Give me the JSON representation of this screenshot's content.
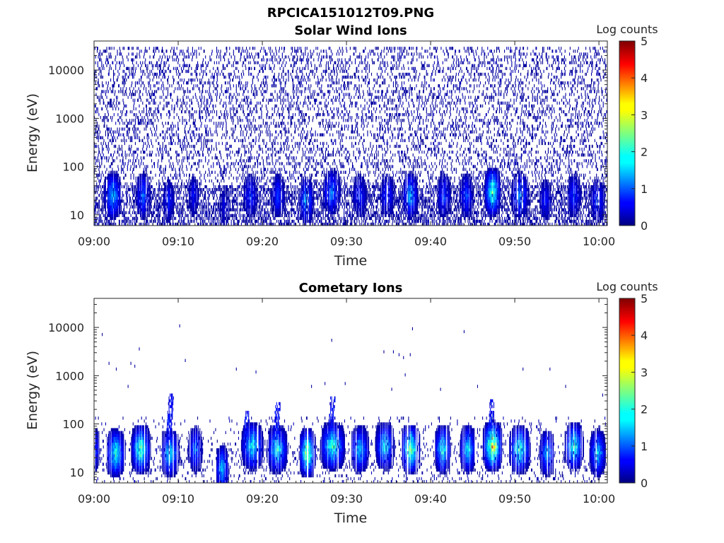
{
  "figure_title": "RPCICA151012T09.PNG",
  "chart_data": [
    {
      "type": "heatmap",
      "title": "Solar Wind Ions",
      "xlabel": "Time",
      "ylabel": "Energy (eV)",
      "x_range": [
        "09:00",
        "10:01"
      ],
      "x_ticks": [
        "09:00",
        "09:10",
        "09:20",
        "09:30",
        "09:40",
        "09:50",
        "10:00"
      ],
      "y_scale": "log",
      "y_range": [
        6,
        40000
      ],
      "y_ticks": [
        "10",
        "100",
        "1000",
        "10000"
      ],
      "colorbar": {
        "label": "Log counts",
        "range": [
          0,
          5
        ],
        "ticks": [
          "0",
          "1",
          "2",
          "3",
          "4",
          "5"
        ],
        "colormap": "jet"
      },
      "seed": 7,
      "background_density": 0.17,
      "background_max_energy": 30000,
      "bursts": [
        {
          "minute": 2.2,
          "peak_energy": 25,
          "peak_log": 1.9,
          "width": 1.2
        },
        {
          "minute": 5.8,
          "peak_energy": 25,
          "peak_log": 1.4,
          "width": 1.0
        },
        {
          "minute": 8.8,
          "peak_energy": 20,
          "peak_log": 1.0,
          "width": 0.8
        },
        {
          "minute": 11.8,
          "peak_energy": 25,
          "peak_log": 0.8,
          "width": 0.8
        },
        {
          "minute": 15.5,
          "peak_energy": 15,
          "peak_log": 0.7,
          "width": 0.8
        },
        {
          "minute": 18.5,
          "peak_energy": 25,
          "peak_log": 1.1,
          "width": 1.0
        },
        {
          "minute": 21.8,
          "peak_energy": 25,
          "peak_log": 1.1,
          "width": 1.0
        },
        {
          "minute": 25.2,
          "peak_energy": 20,
          "peak_log": 1.8,
          "width": 0.9
        },
        {
          "minute": 28.2,
          "peak_energy": 30,
          "peak_log": 1.5,
          "width": 1.2
        },
        {
          "minute": 31.5,
          "peak_energy": 25,
          "peak_log": 1.0,
          "width": 1.0
        },
        {
          "minute": 34.8,
          "peak_energy": 25,
          "peak_log": 1.1,
          "width": 1.0
        },
        {
          "minute": 37.5,
          "peak_energy": 25,
          "peak_log": 1.8,
          "width": 1.0
        },
        {
          "minute": 41.5,
          "peak_energy": 25,
          "peak_log": 1.2,
          "width": 0.9
        },
        {
          "minute": 44.2,
          "peak_energy": 25,
          "peak_log": 1.2,
          "width": 0.9
        },
        {
          "minute": 47.3,
          "peak_energy": 30,
          "peak_log": 2.9,
          "width": 1.0
        },
        {
          "minute": 50.6,
          "peak_energy": 25,
          "peak_log": 1.7,
          "width": 1.1
        },
        {
          "minute": 53.6,
          "peak_energy": 20,
          "peak_log": 0.9,
          "width": 0.9
        },
        {
          "minute": 57.0,
          "peak_energy": 25,
          "peak_log": 1.1,
          "width": 1.0
        },
        {
          "minute": 59.8,
          "peak_energy": 20,
          "peak_log": 1.2,
          "width": 1.0
        }
      ]
    },
    {
      "type": "heatmap",
      "title": "Cometary Ions",
      "xlabel": "Time",
      "ylabel": "Energy (eV)",
      "x_range": [
        "09:00",
        "10:01"
      ],
      "x_ticks": [
        "09:00",
        "09:10",
        "09:20",
        "09:30",
        "09:40",
        "09:50",
        "10:00"
      ],
      "y_scale": "log",
      "y_range": [
        6,
        40000
      ],
      "y_ticks": [
        "10",
        "100",
        "1000",
        "10000"
      ],
      "colorbar": {
        "label": "Log counts",
        "range": [
          0,
          5
        ],
        "ticks": [
          "0",
          "1",
          "2",
          "3",
          "4",
          "5"
        ],
        "colormap": "jet"
      },
      "seed": 19,
      "background_density": 0.035,
      "background_max_energy": 150,
      "bursts": [
        {
          "minute": 0.2,
          "peak_energy": 30,
          "peak_log": 1.0,
          "width": 0.5
        },
        {
          "minute": 2.5,
          "peak_energy": 25,
          "peak_log": 2.6,
          "width": 1.2
        },
        {
          "minute": 5.5,
          "peak_energy": 30,
          "peak_log": 2.9,
          "width": 1.2
        },
        {
          "minute": 9.0,
          "peak_energy": 25,
          "peak_log": 2.2,
          "width": 1.2
        },
        {
          "minute": 12.0,
          "peak_energy": 30,
          "peak_log": 1.5,
          "width": 0.9
        },
        {
          "minute": 15.2,
          "peak_energy": 12,
          "peak_log": 2.0,
          "width": 0.8
        },
        {
          "minute": 18.8,
          "peak_energy": 35,
          "peak_log": 2.3,
          "width": 1.4
        },
        {
          "minute": 21.7,
          "peak_energy": 30,
          "peak_log": 2.3,
          "width": 1.3
        },
        {
          "minute": 25.3,
          "peak_energy": 25,
          "peak_log": 3.4,
          "width": 1.0
        },
        {
          "minute": 28.3,
          "peak_energy": 35,
          "peak_log": 2.7,
          "width": 1.5
        },
        {
          "minute": 31.5,
          "peak_energy": 30,
          "peak_log": 2.0,
          "width": 1.2
        },
        {
          "minute": 34.5,
          "peak_energy": 35,
          "peak_log": 2.2,
          "width": 1.2
        },
        {
          "minute": 37.6,
          "peak_energy": 30,
          "peak_log": 3.1,
          "width": 1.2
        },
        {
          "minute": 41.4,
          "peak_energy": 30,
          "peak_log": 2.5,
          "width": 1.0
        },
        {
          "minute": 44.4,
          "peak_energy": 30,
          "peak_log": 2.3,
          "width": 1.0
        },
        {
          "minute": 47.3,
          "peak_energy": 35,
          "peak_log": 3.8,
          "width": 1.2
        },
        {
          "minute": 50.5,
          "peak_energy": 30,
          "peak_log": 2.6,
          "width": 1.3
        },
        {
          "minute": 53.8,
          "peak_energy": 25,
          "peak_log": 1.8,
          "width": 1.0
        },
        {
          "minute": 57.0,
          "peak_energy": 35,
          "peak_log": 2.6,
          "width": 1.2
        },
        {
          "minute": 59.8,
          "peak_energy": 25,
          "peak_log": 2.1,
          "width": 1.0
        }
      ],
      "plumes": [
        {
          "minute": 8.8,
          "energy_high": 400
        },
        {
          "minute": 18.0,
          "energy_high": 180
        },
        {
          "minute": 21.5,
          "energy_high": 280
        },
        {
          "minute": 28.0,
          "energy_high": 350
        },
        {
          "minute": 47.0,
          "energy_high": 330
        }
      ],
      "sparse_points": [
        {
          "minute": 0.9,
          "energy": 7000
        },
        {
          "minute": 1.7,
          "energy": 1800
        },
        {
          "minute": 2.6,
          "energy": 1300
        },
        {
          "minute": 4.3,
          "energy": 1800
        },
        {
          "minute": 4.8,
          "energy": 1600
        },
        {
          "minute": 5.3,
          "energy": 3800
        },
        {
          "minute": 4.0,
          "energy": 600
        },
        {
          "minute": 10.1,
          "energy": 10500
        },
        {
          "minute": 10.8,
          "energy": 2000
        },
        {
          "minute": 16.9,
          "energy": 1300
        },
        {
          "minute": 19.2,
          "energy": 1200
        },
        {
          "minute": 25.8,
          "energy": 600
        },
        {
          "minute": 27.4,
          "energy": 700
        },
        {
          "minute": 28.2,
          "energy": 5500
        },
        {
          "minute": 29.8,
          "energy": 700
        },
        {
          "minute": 34.4,
          "energy": 3300
        },
        {
          "minute": 35.5,
          "energy": 3000
        },
        {
          "minute": 36.2,
          "energy": 2700
        },
        {
          "minute": 36.7,
          "energy": 2400
        },
        {
          "minute": 37.5,
          "energy": 2900
        },
        {
          "minute": 37.8,
          "energy": 10000
        },
        {
          "minute": 43.9,
          "energy": 8500
        },
        {
          "minute": 45.5,
          "energy": 600
        },
        {
          "minute": 50.9,
          "energy": 1300
        },
        {
          "minute": 54.1,
          "energy": 1300
        },
        {
          "minute": 56.0,
          "energy": 600
        },
        {
          "minute": 60.4,
          "energy": 400
        },
        {
          "minute": 35.3,
          "energy": 560
        },
        {
          "minute": 36.9,
          "energy": 1100
        },
        {
          "minute": 41.1,
          "energy": 560
        }
      ]
    }
  ]
}
